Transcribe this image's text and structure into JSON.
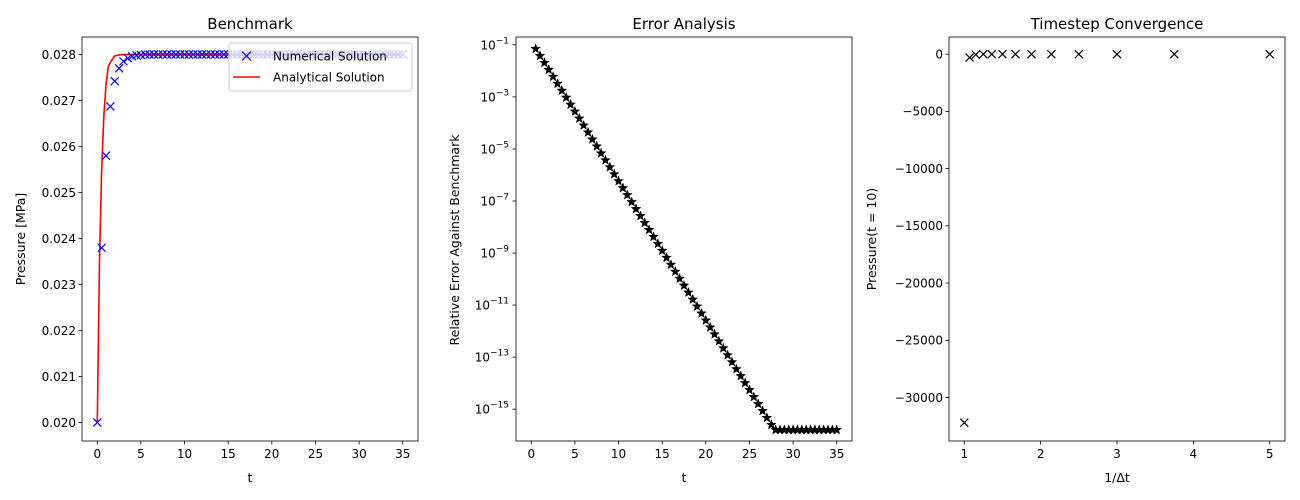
{
  "figure": {
    "type": "matplotlib-figure",
    "background": "#ffffff"
  },
  "chart_data": [
    {
      "id": "benchmark",
      "type": "line",
      "title": "Benchmark",
      "xlabel": "t",
      "ylabel": "Pressure [MPa]",
      "xlim": [
        -1.75,
        36.75
      ],
      "ylim": [
        0.0196,
        0.02838
      ],
      "xticks": [
        0,
        5,
        10,
        15,
        20,
        25,
        30,
        35
      ],
      "yticks": [
        0.02,
        0.021,
        0.022,
        0.023,
        0.024,
        0.025,
        0.026,
        0.027,
        0.028
      ],
      "ytick_labels": [
        "0.020",
        "0.021",
        "0.022",
        "0.023",
        "0.024",
        "0.025",
        "0.026",
        "0.027",
        "0.028"
      ],
      "grid": false,
      "legend": {
        "position": "top-right",
        "entries": [
          "Numerical Solution",
          "Analytical Solution"
        ]
      },
      "series": [
        {
          "name": "Numerical Solution",
          "style": "marker-x",
          "color": "#0000ff",
          "x": [
            0,
            0.5,
            1,
            1.5,
            2,
            2.5,
            3,
            3.5,
            4,
            4.5,
            5,
            5.5,
            6,
            6.5,
            7,
            7.5,
            8,
            8.5,
            9,
            9.5,
            10,
            10.5,
            11,
            11.5,
            12,
            12.5,
            13,
            13.5,
            14,
            14.5,
            15,
            15.5,
            16,
            16.5,
            17,
            17.5,
            18,
            18.5,
            19,
            19.5,
            20,
            20.5,
            21,
            21.5,
            22,
            22.5,
            23,
            23.5,
            24,
            24.5,
            25,
            25.5,
            26,
            26.5,
            27,
            27.5,
            28,
            28.5,
            29,
            29.5,
            30,
            30.5,
            31,
            31.5,
            32,
            32.5,
            33,
            33.5,
            34,
            34.5,
            35
          ],
          "y": [
            0.02,
            0.0238,
            0.0258,
            0.02687,
            0.02742,
            0.0277,
            0.02785,
            0.02792,
            0.02796,
            0.02798,
            0.02799,
            0.028,
            0.028,
            0.028,
            0.028,
            0.028,
            0.028,
            0.028,
            0.028,
            0.028,
            0.028,
            0.028,
            0.028,
            0.028,
            0.028,
            0.028,
            0.028,
            0.028,
            0.028,
            0.028,
            0.028,
            0.028,
            0.028,
            0.028,
            0.028,
            0.028,
            0.028,
            0.028,
            0.028,
            0.028,
            0.028,
            0.028,
            0.028,
            0.028,
            0.028,
            0.028,
            0.028,
            0.028,
            0.028,
            0.028,
            0.028,
            0.028,
            0.028,
            0.028,
            0.028,
            0.028,
            0.028,
            0.028,
            0.028,
            0.028,
            0.028,
            0.028,
            0.028,
            0.028,
            0.028,
            0.028,
            0.028,
            0.028,
            0.028,
            0.028,
            0.028
          ]
        },
        {
          "name": "Analytical Solution",
          "style": "line",
          "color": "#ff0000",
          "x": [
            0,
            0.25,
            0.5,
            0.75,
            1,
            1.25,
            1.5,
            2,
            2.5,
            3,
            3.5,
            4,
            5,
            6,
            8,
            10,
            15,
            20,
            25,
            30,
            35
          ],
          "y": [
            0.02,
            0.02346,
            0.02548,
            0.02665,
            0.02734,
            0.02773,
            0.02783,
            0.02797,
            0.02799,
            0.028,
            0.028,
            0.028,
            0.028,
            0.028,
            0.028,
            0.028,
            0.028,
            0.028,
            0.028,
            0.028,
            0.028
          ]
        }
      ]
    },
    {
      "id": "error",
      "type": "scatter",
      "title": "Error Analysis",
      "xlabel": "t",
      "ylabel": "Relative Error Against Benchmark",
      "yscale": "log",
      "xlim": [
        -1.75,
        36.75
      ],
      "ylim": [
        6e-17,
        0.2
      ],
      "xticks": [
        0,
        5,
        10,
        15,
        20,
        25,
        30,
        35
      ],
      "yticks_exponent": [
        -1,
        -3,
        -5,
        -7,
        -9,
        -11,
        -13,
        -15
      ],
      "ytick_base": "10",
      "grid": false,
      "series": [
        {
          "name": "",
          "style": "marker-star",
          "color": "#000000",
          "x_start": 0.5,
          "x_step": 0.5,
          "x_end": 35,
          "decay": {
            "y0": 0.07,
            "log10_slope_per_unit": -0.535,
            "floor": 1.6e-16
          }
        }
      ]
    },
    {
      "id": "convergence",
      "type": "scatter",
      "title": "Timestep Convergence",
      "xlabel": "1/Δt",
      "ylabel": "Pressure(t = 10)",
      "xlim": [
        0.8,
        5.2
      ],
      "ylim": [
        -33800,
        1500
      ],
      "xticks": [
        1,
        2,
        3,
        4,
        5
      ],
      "yticks": [
        0,
        -5000,
        -10000,
        -15000,
        -20000,
        -25000,
        -30000
      ],
      "ytick_labels": [
        "0",
        "−5000",
        "−10000",
        "−15000",
        "−20000",
        "−25000",
        "−30000"
      ],
      "grid": false,
      "series": [
        {
          "name": "",
          "style": "marker-x",
          "color": "#000000",
          "x": [
            1,
            1.07,
            1.15,
            1.25,
            1.36,
            1.5,
            1.67,
            1.88,
            2.14,
            2.5,
            3,
            3.75,
            5
          ],
          "y": [
            -32200,
            -300,
            -40,
            0,
            0,
            0,
            0,
            0,
            0,
            0,
            0,
            0,
            0
          ]
        }
      ]
    }
  ]
}
